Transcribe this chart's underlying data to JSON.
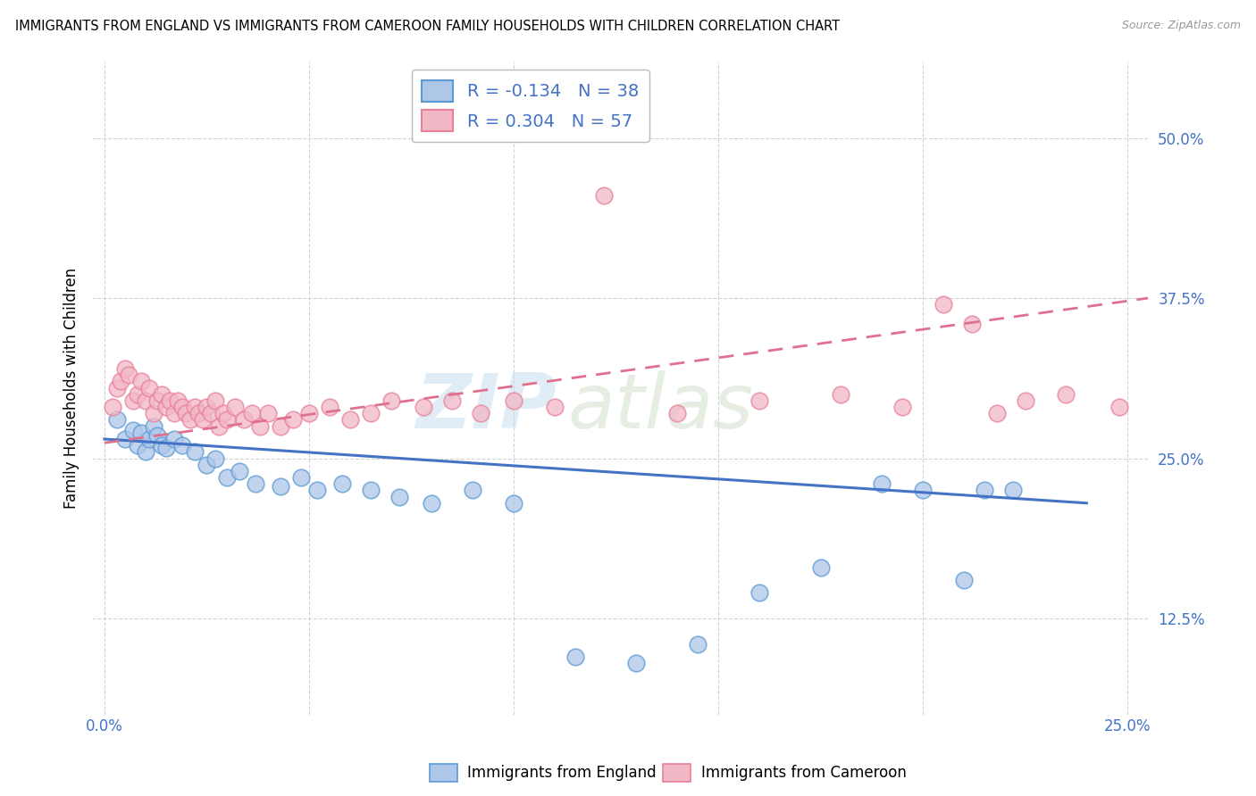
{
  "title": "IMMIGRANTS FROM ENGLAND VS IMMIGRANTS FROM CAMEROON FAMILY HOUSEHOLDS WITH CHILDREN CORRELATION CHART",
  "source": "Source: ZipAtlas.com",
  "ylabel": "Family Households with Children",
  "xlabel_england": "Immigrants from England",
  "xlabel_cameroon": "Immigrants from Cameroon",
  "xlim": [
    -0.003,
    0.255
  ],
  "ylim": [
    0.05,
    0.56
  ],
  "ytick_vals": [
    0.125,
    0.25,
    0.375,
    0.5
  ],
  "ytick_labels": [
    "12.5%",
    "25.0%",
    "37.5%",
    "50.0%"
  ],
  "xtick_vals": [
    0.0,
    0.05,
    0.1,
    0.15,
    0.2,
    0.25
  ],
  "xtick_labels": [
    "0.0%",
    "",
    "",
    "",
    "",
    "25.0%"
  ],
  "england_R": -0.134,
  "england_N": 38,
  "cameroon_R": 0.304,
  "cameroon_N": 57,
  "england_fill_color": "#aec6e8",
  "cameroon_fill_color": "#f2b8c6",
  "england_edge_color": "#5b9bd5",
  "cameroon_edge_color": "#e8809a",
  "england_line_color": "#4472c4",
  "cameroon_line_color": "#e07090",
  "england_scatter_x": [
    0.003,
    0.005,
    0.007,
    0.008,
    0.009,
    0.01,
    0.011,
    0.012,
    0.013,
    0.014,
    0.015,
    0.017,
    0.019,
    0.022,
    0.025,
    0.027,
    0.03,
    0.033,
    0.037,
    0.043,
    0.048,
    0.052,
    0.058,
    0.065,
    0.072,
    0.08,
    0.09,
    0.1,
    0.115,
    0.13,
    0.145,
    0.16,
    0.175,
    0.19,
    0.2,
    0.21,
    0.215,
    0.222
  ],
  "england_scatter_y": [
    0.28,
    0.265,
    0.272,
    0.26,
    0.27,
    0.255,
    0.265,
    0.275,
    0.268,
    0.26,
    0.258,
    0.265,
    0.26,
    0.255,
    0.245,
    0.25,
    0.235,
    0.24,
    0.23,
    0.228,
    0.235,
    0.225,
    0.23,
    0.225,
    0.22,
    0.215,
    0.225,
    0.215,
    0.095,
    0.09,
    0.105,
    0.145,
    0.165,
    0.23,
    0.225,
    0.155,
    0.225,
    0.225
  ],
  "cameroon_scatter_x": [
    0.002,
    0.003,
    0.004,
    0.005,
    0.006,
    0.007,
    0.008,
    0.009,
    0.01,
    0.011,
    0.012,
    0.013,
    0.014,
    0.015,
    0.016,
    0.017,
    0.018,
    0.019,
    0.02,
    0.021,
    0.022,
    0.023,
    0.024,
    0.025,
    0.026,
    0.027,
    0.028,
    0.029,
    0.03,
    0.032,
    0.034,
    0.036,
    0.038,
    0.04,
    0.043,
    0.046,
    0.05,
    0.055,
    0.06,
    0.065,
    0.07,
    0.078,
    0.085,
    0.092,
    0.1,
    0.11,
    0.122,
    0.14,
    0.16,
    0.18,
    0.195,
    0.205,
    0.212,
    0.218,
    0.225,
    0.235,
    0.248
  ],
  "cameroon_scatter_y": [
    0.29,
    0.305,
    0.31,
    0.32,
    0.315,
    0.295,
    0.3,
    0.31,
    0.295,
    0.305,
    0.285,
    0.295,
    0.3,
    0.29,
    0.295,
    0.285,
    0.295,
    0.29,
    0.285,
    0.28,
    0.29,
    0.285,
    0.28,
    0.29,
    0.285,
    0.295,
    0.275,
    0.285,
    0.28,
    0.29,
    0.28,
    0.285,
    0.275,
    0.285,
    0.275,
    0.28,
    0.285,
    0.29,
    0.28,
    0.285,
    0.295,
    0.29,
    0.295,
    0.285,
    0.295,
    0.29,
    0.455,
    0.285,
    0.295,
    0.3,
    0.29,
    0.37,
    0.355,
    0.285,
    0.295,
    0.3,
    0.29
  ]
}
